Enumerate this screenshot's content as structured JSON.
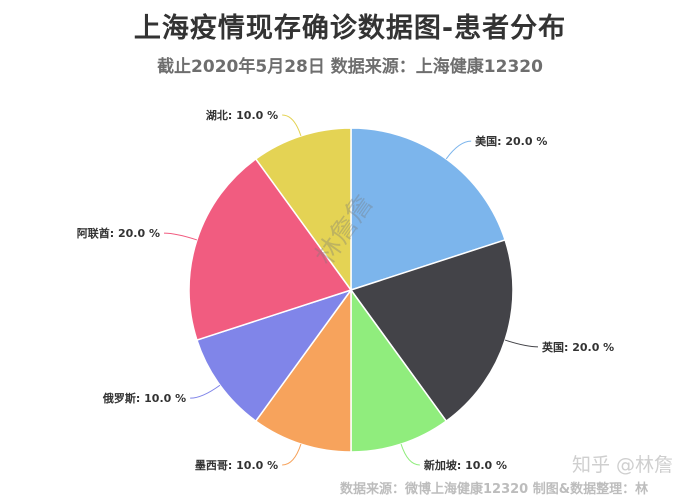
{
  "title": "上海疫情现存确诊数据图-患者分布",
  "subtitle": "截止2020年5月28日 数据来源：上海健康12320",
  "watermark_center": "林詹詹",
  "watermark_zhihu": "知乎 @林詹",
  "footer_source": "数据来源：微博上海健康12320 制图&数据整理：林",
  "chart_data": {
    "type": "pie",
    "title": "上海疫情现存确诊数据图-患者分布",
    "subtitle": "截止2020年5月28日 数据来源：上海健康12320",
    "legend": "none",
    "slices": [
      {
        "name": "美国",
        "value": 20.0,
        "label": "美国: 20.0 %",
        "color": "#7cb5ec"
      },
      {
        "name": "英国",
        "value": 20.0,
        "label": "英国: 20.0 %",
        "color": "#434348"
      },
      {
        "name": "新加坡",
        "value": 10.0,
        "label": "新加坡: 10.0 %",
        "color": "#90ed7d"
      },
      {
        "name": "墨西哥",
        "value": 10.0,
        "label": "墨西哥: 10.0 %",
        "color": "#f7a35c"
      },
      {
        "name": "俄罗斯",
        "value": 10.0,
        "label": "俄罗斯: 10.0 %",
        "color": "#8085e9"
      },
      {
        "name": "阿联酋",
        "value": 20.0,
        "label": "阿联酋: 20.0 %",
        "color": "#f15c80"
      },
      {
        "name": "湖北",
        "value": 10.0,
        "label": "湖北: 10.0 %",
        "color": "#e4d354"
      }
    ]
  }
}
